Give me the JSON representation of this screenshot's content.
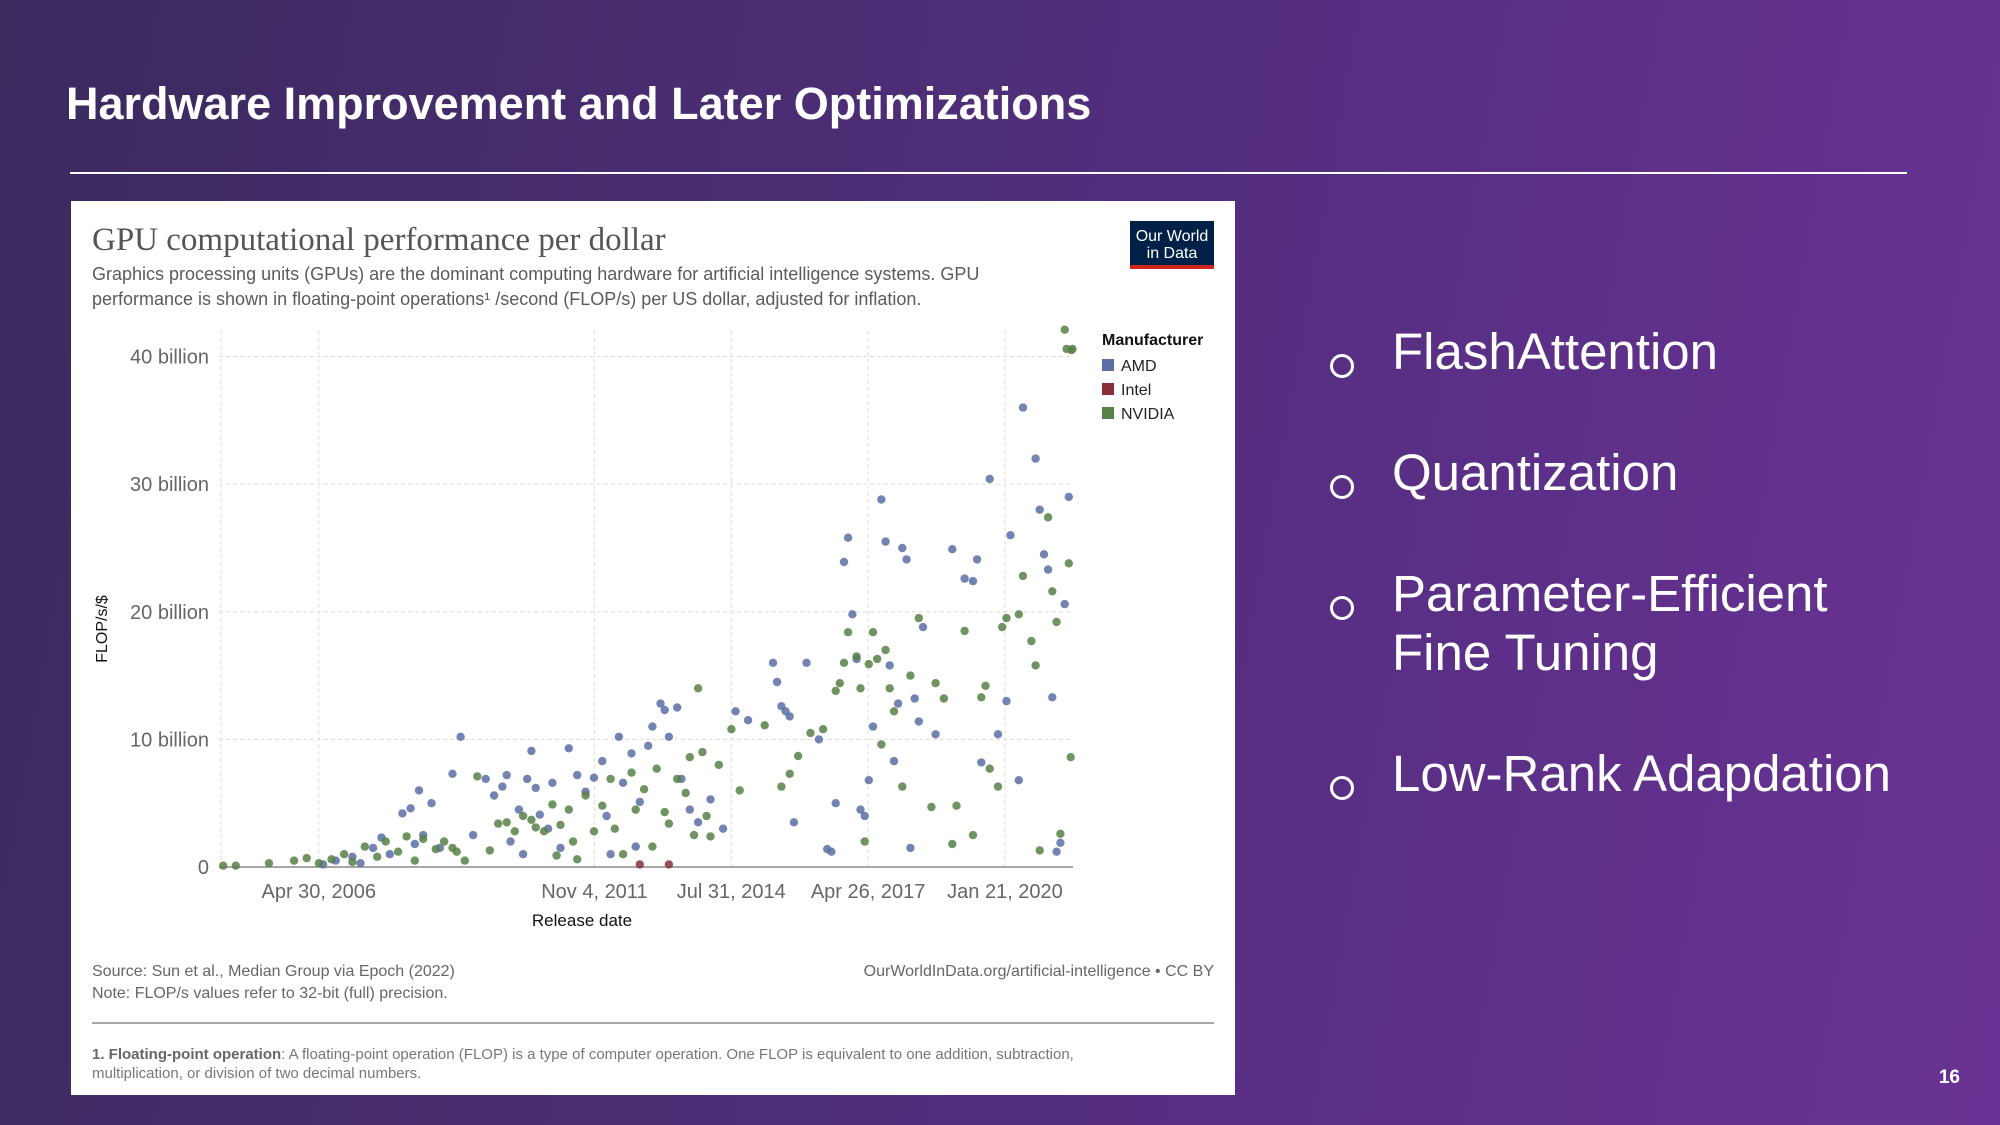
{
  "slide": {
    "title": "Hardware Improvement and Later Optimizations",
    "page_number": "16",
    "bullets": [
      {
        "label": "FlashAttention"
      },
      {
        "label": "Quantization"
      },
      {
        "label": "Parameter-Efficient Fine Tuning"
      },
      {
        "label": "Low-Rank Adapdation"
      }
    ]
  },
  "figure": {
    "logo": {
      "line1": "Our World",
      "line2": "in Data"
    },
    "subtitle_line1": "Graphics processing units (GPUs) are the dominant computing hardware for artificial intelligence systems. GPU",
    "subtitle_line2": "performance is shown in floating-point operations¹ /second (FLOP/s) per US dollar, adjusted for inflation.",
    "legend_title": "Manufacturer",
    "source_line1": "Source: Sun et al., Median Group via Epoch (2022)",
    "source_line2": "Note: FLOP/s values refer to 32-bit (full) precision.",
    "credit": "OurWorldInData.org/artificial-intelligence • CC BY",
    "footnote_term": "1. Floating-point operation",
    "footnote_line1": ": A floating-point operation (FLOP) is a type of computer operation. One FLOP is equivalent to one addition, subtraction,",
    "footnote_line2": "multiplication, or division of two decimal numbers."
  },
  "chart_data": {
    "type": "scatter",
    "title": "GPU computational performance per dollar",
    "xlabel": "Release date",
    "ylabel": "FLOP/s/$",
    "x_ticks": [
      "Apr 30, 2006",
      "Nov 4, 2011",
      "Jul 31, 2014",
      "Apr 26, 2017",
      "Jan 21, 2020"
    ],
    "y_ticks": [
      "0",
      "10 billion",
      "20 billion",
      "30 billion",
      "40 billion"
    ],
    "x_range": [
      "2004-05-01",
      "2021-06-01"
    ],
    "ylim": [
      0,
      42000000000
    ],
    "grid": true,
    "legend_position": "top-right",
    "series": [
      {
        "name": "AMD",
        "color": "#5b6fa6",
        "points": [
          [
            "2006-06-01",
            0.2
          ],
          [
            "2006-09-01",
            0.5
          ],
          [
            "2007-01-01",
            0.8
          ],
          [
            "2007-03-01",
            0.3
          ],
          [
            "2007-06-01",
            1.5
          ],
          [
            "2007-08-01",
            2.3
          ],
          [
            "2007-10-01",
            1.0
          ],
          [
            "2008-01-01",
            4.2
          ],
          [
            "2008-03-01",
            4.6
          ],
          [
            "2008-04-01",
            1.8
          ],
          [
            "2008-05-01",
            6.0
          ],
          [
            "2008-06-01",
            2.5
          ],
          [
            "2008-08-01",
            5.0
          ],
          [
            "2008-10-01",
            1.5
          ],
          [
            "2009-01-01",
            7.3
          ],
          [
            "2009-03-01",
            10.2
          ],
          [
            "2009-06-01",
            2.5
          ],
          [
            "2009-09-01",
            6.9
          ],
          [
            "2009-11-01",
            5.6
          ],
          [
            "2010-01-01",
            6.3
          ],
          [
            "2010-02-01",
            7.2
          ],
          [
            "2010-03-01",
            2.0
          ],
          [
            "2010-05-01",
            4.5
          ],
          [
            "2010-06-01",
            1.0
          ],
          [
            "2010-07-01",
            6.9
          ],
          [
            "2010-08-01",
            9.1
          ],
          [
            "2010-09-01",
            6.2
          ],
          [
            "2010-10-01",
            4.1
          ],
          [
            "2010-12-01",
            3.0
          ],
          [
            "2011-01-01",
            6.6
          ],
          [
            "2011-03-01",
            1.5
          ],
          [
            "2011-05-01",
            9.3
          ],
          [
            "2011-07-01",
            7.2
          ],
          [
            "2011-09-01",
            5.9
          ],
          [
            "2011-11-01",
            7.0
          ],
          [
            "2012-01-01",
            8.3
          ],
          [
            "2012-02-01",
            4.0
          ],
          [
            "2012-03-01",
            1.0
          ],
          [
            "2012-05-01",
            10.2
          ],
          [
            "2012-06-01",
            6.6
          ],
          [
            "2012-08-01",
            8.9
          ],
          [
            "2012-09-01",
            1.6
          ],
          [
            "2012-10-01",
            5.1
          ],
          [
            "2012-12-01",
            9.5
          ],
          [
            "2013-01-01",
            11.0
          ],
          [
            "2013-03-01",
            12.8
          ],
          [
            "2013-04-01",
            12.3
          ],
          [
            "2013-05-01",
            10.2
          ],
          [
            "2013-07-01",
            12.5
          ],
          [
            "2013-08-01",
            6.9
          ],
          [
            "2013-10-01",
            4.5
          ],
          [
            "2013-12-01",
            3.5
          ],
          [
            "2014-03-01",
            5.3
          ],
          [
            "2014-06-01",
            3.0
          ],
          [
            "2014-09-01",
            12.2
          ],
          [
            "2014-12-01",
            11.5
          ],
          [
            "2015-06-01",
            16.0
          ],
          [
            "2015-07-01",
            14.5
          ],
          [
            "2015-08-01",
            12.6
          ],
          [
            "2015-09-01",
            12.2
          ],
          [
            "2015-10-01",
            11.8
          ],
          [
            "2015-11-01",
            3.5
          ],
          [
            "2016-02-01",
            16.0
          ],
          [
            "2016-05-01",
            10.0
          ],
          [
            "2016-07-01",
            1.4
          ],
          [
            "2016-08-01",
            1.2
          ],
          [
            "2016-09-01",
            5.0
          ],
          [
            "2016-11-01",
            23.9
          ],
          [
            "2016-12-01",
            25.8
          ],
          [
            "2017-01-01",
            19.8
          ],
          [
            "2017-02-01",
            16.3
          ],
          [
            "2017-03-01",
            4.5
          ],
          [
            "2017-04-01",
            4.0
          ],
          [
            "2017-05-01",
            6.8
          ],
          [
            "2017-06-01",
            11.0
          ],
          [
            "2017-08-01",
            28.8
          ],
          [
            "2017-09-01",
            25.5
          ],
          [
            "2017-10-01",
            15.8
          ],
          [
            "2017-11-01",
            8.3
          ],
          [
            "2017-12-01",
            12.8
          ],
          [
            "2018-01-01",
            25.0
          ],
          [
            "2018-02-01",
            24.1
          ],
          [
            "2018-03-01",
            1.5
          ],
          [
            "2018-04-01",
            13.2
          ],
          [
            "2018-05-01",
            11.4
          ],
          [
            "2018-06-01",
            18.8
          ],
          [
            "2018-09-01",
            10.4
          ],
          [
            "2019-01-01",
            24.9
          ],
          [
            "2019-04-01",
            22.6
          ],
          [
            "2019-06-01",
            22.4
          ],
          [
            "2019-07-01",
            24.1
          ],
          [
            "2019-08-01",
            8.2
          ],
          [
            "2019-10-01",
            30.4
          ],
          [
            "2019-12-01",
            10.4
          ],
          [
            "2020-02-01",
            13.0
          ],
          [
            "2020-03-01",
            26.0
          ],
          [
            "2020-05-01",
            6.8
          ],
          [
            "2020-06-01",
            36.0
          ],
          [
            "2020-09-01",
            32.0
          ],
          [
            "2020-10-01",
            28.0
          ],
          [
            "2020-11-01",
            24.5
          ],
          [
            "2020-12-01",
            23.3
          ],
          [
            "2021-01-01",
            13.3
          ],
          [
            "2021-02-01",
            1.2
          ],
          [
            "2021-03-01",
            1.9
          ],
          [
            "2021-04-01",
            20.6
          ],
          [
            "2021-05-01",
            29.0
          ]
        ]
      },
      {
        "name": "Intel",
        "color": "#883039",
        "points": [
          [
            "2012-10-01",
            0.2
          ],
          [
            "2013-05-01",
            0.2
          ]
        ]
      },
      {
        "name": "NVIDIA",
        "color": "#578145",
        "points": [
          [
            "2004-06-01",
            0.1
          ],
          [
            "2004-09-01",
            0.1
          ],
          [
            "2005-05-01",
            0.3
          ],
          [
            "2005-11-01",
            0.5
          ],
          [
            "2006-02-01",
            0.7
          ],
          [
            "2006-05-01",
            0.3
          ],
          [
            "2006-08-01",
            0.6
          ],
          [
            "2006-11-01",
            1.0
          ],
          [
            "2007-01-01",
            0.4
          ],
          [
            "2007-04-01",
            1.6
          ],
          [
            "2007-07-01",
            0.8
          ],
          [
            "2007-09-01",
            2.0
          ],
          [
            "2007-12-01",
            1.2
          ],
          [
            "2008-02-01",
            2.4
          ],
          [
            "2008-04-01",
            0.5
          ],
          [
            "2008-06-01",
            2.2
          ],
          [
            "2008-09-01",
            1.4
          ],
          [
            "2008-11-01",
            2.0
          ],
          [
            "2009-01-01",
            1.5
          ],
          [
            "2009-02-01",
            1.2
          ],
          [
            "2009-04-01",
            0.5
          ],
          [
            "2009-07-01",
            7.1
          ],
          [
            "2009-10-01",
            1.3
          ],
          [
            "2009-12-01",
            3.4
          ],
          [
            "2010-02-01",
            3.5
          ],
          [
            "2010-04-01",
            2.8
          ],
          [
            "2010-06-01",
            4.0
          ],
          [
            "2010-08-01",
            3.7
          ],
          [
            "2010-09-01",
            3.1
          ],
          [
            "2010-11-01",
            2.8
          ],
          [
            "2011-01-01",
            4.9
          ],
          [
            "2011-02-01",
            0.9
          ],
          [
            "2011-03-01",
            3.3
          ],
          [
            "2011-05-01",
            4.5
          ],
          [
            "2011-06-01",
            2.0
          ],
          [
            "2011-07-01",
            0.6
          ],
          [
            "2011-09-01",
            5.6
          ],
          [
            "2011-11-01",
            2.8
          ],
          [
            "2012-01-01",
            4.8
          ],
          [
            "2012-03-01",
            6.9
          ],
          [
            "2012-04-01",
            3.0
          ],
          [
            "2012-06-01",
            1.0
          ],
          [
            "2012-08-01",
            7.4
          ],
          [
            "2012-09-01",
            4.5
          ],
          [
            "2012-11-01",
            6.1
          ],
          [
            "2013-01-01",
            1.6
          ],
          [
            "2013-02-01",
            7.7
          ],
          [
            "2013-04-01",
            4.3
          ],
          [
            "2013-05-01",
            3.4
          ],
          [
            "2013-07-01",
            6.9
          ],
          [
            "2013-09-01",
            5.8
          ],
          [
            "2013-10-01",
            8.6
          ],
          [
            "2013-11-01",
            2.5
          ],
          [
            "2013-12-01",
            14.0
          ],
          [
            "2014-01-01",
            9.0
          ],
          [
            "2014-02-01",
            4.0
          ],
          [
            "2014-03-01",
            2.4
          ],
          [
            "2014-05-01",
            8.0
          ],
          [
            "2014-08-01",
            10.8
          ],
          [
            "2014-10-01",
            6.0
          ],
          [
            "2015-04-01",
            11.1
          ],
          [
            "2015-08-01",
            6.3
          ],
          [
            "2015-10-01",
            7.3
          ],
          [
            "2015-12-01",
            8.7
          ],
          [
            "2016-03-01",
            10.5
          ],
          [
            "2016-06-01",
            10.8
          ],
          [
            "2016-09-01",
            13.8
          ],
          [
            "2016-10-01",
            14.4
          ],
          [
            "2016-11-01",
            16.0
          ],
          [
            "2016-12-01",
            18.4
          ],
          [
            "2017-02-01",
            16.5
          ],
          [
            "2017-03-01",
            14.0
          ],
          [
            "2017-04-01",
            2.0
          ],
          [
            "2017-05-01",
            15.9
          ],
          [
            "2017-06-01",
            18.4
          ],
          [
            "2017-07-01",
            16.3
          ],
          [
            "2017-08-01",
            9.6
          ],
          [
            "2017-09-01",
            17.0
          ],
          [
            "2017-10-01",
            14.0
          ],
          [
            "2017-11-01",
            12.2
          ],
          [
            "2018-01-01",
            6.3
          ],
          [
            "2018-03-01",
            15.0
          ],
          [
            "2018-05-01",
            19.5
          ],
          [
            "2018-08-01",
            4.7
          ],
          [
            "2018-09-01",
            14.4
          ],
          [
            "2018-11-01",
            13.2
          ],
          [
            "2019-01-01",
            1.8
          ],
          [
            "2019-02-01",
            4.8
          ],
          [
            "2019-04-01",
            18.5
          ],
          [
            "2019-06-01",
            2.5
          ],
          [
            "2019-08-01",
            13.3
          ],
          [
            "2019-09-01",
            14.2
          ],
          [
            "2019-10-01",
            7.7
          ],
          [
            "2019-12-01",
            6.3
          ],
          [
            "2020-01-01",
            18.8
          ],
          [
            "2020-02-01",
            19.5
          ],
          [
            "2020-05-01",
            19.8
          ],
          [
            "2020-06-01",
            22.8
          ],
          [
            "2020-08-01",
            17.7
          ],
          [
            "2020-09-01",
            15.8
          ],
          [
            "2020-10-01",
            1.3
          ],
          [
            "2020-12-01",
            27.4
          ],
          [
            "2021-01-01",
            21.6
          ],
          [
            "2021-02-01",
            19.2
          ],
          [
            "2021-03-01",
            2.6
          ],
          [
            "2021-04-01",
            42.1
          ],
          [
            "2021-04-15",
            40.6
          ],
          [
            "2021-05-01",
            23.8
          ],
          [
            "2021-05-15",
            8.6
          ],
          [
            "2021-05-20",
            40.5
          ],
          [
            "2021-05-28",
            40.6
          ]
        ]
      }
    ]
  }
}
